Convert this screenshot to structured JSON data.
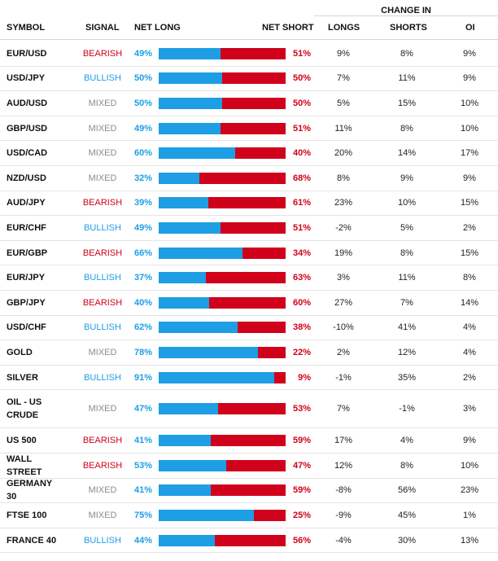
{
  "header": {
    "change_in": "CHANGE IN",
    "symbol": "SYMBOL",
    "signal": "SIGNAL",
    "net_long": "NET LONG",
    "net_short": "NET SHORT",
    "longs": "LONGS",
    "shorts": "SHORTS",
    "oi": "OI"
  },
  "colors": {
    "bullish": "#1e9ee5",
    "bearish": "#d0021b",
    "mixed": "#8c8c8c"
  },
  "rows": [
    {
      "symbol": "EUR/USD",
      "signal": "BEARISH",
      "net_long": "49%",
      "net_short": "51%",
      "longs": "9%",
      "shorts": "8%",
      "oi": "9%"
    },
    {
      "symbol": "USD/JPY",
      "signal": "BULLISH",
      "net_long": "50%",
      "net_short": "50%",
      "longs": "7%",
      "shorts": "11%",
      "oi": "9%"
    },
    {
      "symbol": "AUD/USD",
      "signal": "MIXED",
      "net_long": "50%",
      "net_short": "50%",
      "longs": "5%",
      "shorts": "15%",
      "oi": "10%"
    },
    {
      "symbol": "GBP/USD",
      "signal": "MIXED",
      "net_long": "49%",
      "net_short": "51%",
      "longs": "11%",
      "shorts": "8%",
      "oi": "10%"
    },
    {
      "symbol": "USD/CAD",
      "signal": "MIXED",
      "net_long": "60%",
      "net_short": "40%",
      "longs": "20%",
      "shorts": "14%",
      "oi": "17%"
    },
    {
      "symbol": "NZD/USD",
      "signal": "MIXED",
      "net_long": "32%",
      "net_short": "68%",
      "longs": "8%",
      "shorts": "9%",
      "oi": "9%"
    },
    {
      "symbol": "AUD/JPY",
      "signal": "BEARISH",
      "net_long": "39%",
      "net_short": "61%",
      "longs": "23%",
      "shorts": "10%",
      "oi": "15%"
    },
    {
      "symbol": "EUR/CHF",
      "signal": "BULLISH",
      "net_long": "49%",
      "net_short": "51%",
      "longs": "-2%",
      "shorts": "5%",
      "oi": "2%"
    },
    {
      "symbol": "EUR/GBP",
      "signal": "BEARISH",
      "net_long": "66%",
      "net_short": "34%",
      "longs": "19%",
      "shorts": "8%",
      "oi": "15%"
    },
    {
      "symbol": "EUR/JPY",
      "signal": "BULLISH",
      "net_long": "37%",
      "net_short": "63%",
      "longs": "3%",
      "shorts": "11%",
      "oi": "8%"
    },
    {
      "symbol": "GBP/JPY",
      "signal": "BEARISH",
      "net_long": "40%",
      "net_short": "60%",
      "longs": "27%",
      "shorts": "7%",
      "oi": "14%"
    },
    {
      "symbol": "USD/CHF",
      "signal": "BULLISH",
      "net_long": "62%",
      "net_short": "38%",
      "longs": "-10%",
      "shorts": "41%",
      "oi": "4%"
    },
    {
      "symbol": "GOLD",
      "signal": "MIXED",
      "net_long": "78%",
      "net_short": "22%",
      "longs": "2%",
      "shorts": "12%",
      "oi": "4%"
    },
    {
      "symbol": "SILVER",
      "signal": "BULLISH",
      "net_long": "91%",
      "net_short": "9%",
      "longs": "-1%",
      "shorts": "35%",
      "oi": "2%"
    },
    {
      "symbol": "OIL - US CRUDE",
      "signal": "MIXED",
      "net_long": "47%",
      "net_short": "53%",
      "longs": "7%",
      "shorts": "-1%",
      "oi": "3%"
    },
    {
      "symbol": "US 500",
      "signal": "BEARISH",
      "net_long": "41%",
      "net_short": "59%",
      "longs": "17%",
      "shorts": "4%",
      "oi": "9%"
    },
    {
      "symbol": "WALL STREET",
      "signal": "BEARISH",
      "net_long": "53%",
      "net_short": "47%",
      "longs": "12%",
      "shorts": "8%",
      "oi": "10%"
    },
    {
      "symbol": "GERMANY 30",
      "signal": "MIXED",
      "net_long": "41%",
      "net_short": "59%",
      "longs": "-8%",
      "shorts": "56%",
      "oi": "23%"
    },
    {
      "symbol": "FTSE 100",
      "signal": "MIXED",
      "net_long": "75%",
      "net_short": "25%",
      "longs": "-9%",
      "shorts": "45%",
      "oi": "1%"
    },
    {
      "symbol": "FRANCE 40",
      "signal": "BULLISH",
      "net_long": "44%",
      "net_short": "56%",
      "longs": "-4%",
      "shorts": "30%",
      "oi": "13%"
    }
  ]
}
